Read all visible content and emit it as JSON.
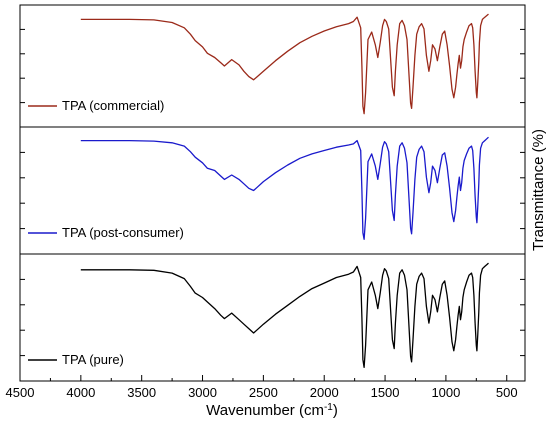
{
  "chart_data": {
    "type": "line",
    "xlabel": "Wavenumber (cm",
    "xlabel_superscript": "-1",
    "xlabel_suffix": ")",
    "ylabel": "Transmittance (%)",
    "x_ticks": [
      "4500",
      "4000",
      "3500",
      "3000",
      "2500",
      "2000",
      "1500",
      "1000",
      "500"
    ],
    "xlim": [
      4500,
      350
    ],
    "x_reversed": true,
    "y_ticks": "unlabeled",
    "grid": false,
    "panels": [
      {
        "name": "TPA (commercial)",
        "color": "#9b2a1a",
        "x": [
          4000,
          3800,
          3600,
          3400,
          3250,
          3150,
          3100,
          3060,
          3000,
          2960,
          2900,
          2850,
          2820,
          2760,
          2700,
          2660,
          2620,
          2580,
          2550,
          2500,
          2400,
          2300,
          2200,
          2100,
          2000,
          1900,
          1800,
          1760,
          1730,
          1700,
          1690,
          1682,
          1672,
          1660,
          1640,
          1610,
          1580,
          1560,
          1540,
          1520,
          1505,
          1490,
          1470,
          1440,
          1425,
          1415,
          1400,
          1380,
          1360,
          1340,
          1320,
          1300,
          1290,
          1282,
          1270,
          1255,
          1240,
          1220,
          1200,
          1180,
          1160,
          1140,
          1125,
          1110,
          1090,
          1070,
          1050,
          1030,
          1010,
          990,
          970,
          950,
          935,
          920,
          910,
          900,
          890,
          880,
          870,
          860,
          850,
          830,
          810,
          790,
          780,
          770,
          760,
          750,
          745,
          738,
          730,
          725,
          715,
          700,
          680,
          660,
          650
        ],
        "y": [
          0.94,
          0.94,
          0.94,
          0.935,
          0.91,
          0.86,
          0.8,
          0.74,
          0.68,
          0.62,
          0.58,
          0.53,
          0.5,
          0.56,
          0.51,
          0.45,
          0.4,
          0.37,
          0.4,
          0.45,
          0.55,
          0.64,
          0.72,
          0.78,
          0.83,
          0.87,
          0.9,
          0.92,
          0.96,
          0.86,
          0.5,
          0.12,
          0.05,
          0.25,
          0.75,
          0.82,
          0.7,
          0.58,
          0.72,
          0.88,
          0.94,
          0.92,
          0.85,
          0.3,
          0.22,
          0.45,
          0.7,
          0.9,
          0.93,
          0.88,
          0.75,
          0.35,
          0.15,
          0.1,
          0.3,
          0.6,
          0.8,
          0.87,
          0.9,
          0.85,
          0.6,
          0.45,
          0.55,
          0.7,
          0.66,
          0.55,
          0.68,
          0.8,
          0.83,
          0.7,
          0.5,
          0.28,
          0.2,
          0.3,
          0.42,
          0.52,
          0.6,
          0.48,
          0.55,
          0.68,
          0.75,
          0.82,
          0.88,
          0.9,
          0.86,
          0.7,
          0.45,
          0.25,
          0.2,
          0.35,
          0.55,
          0.72,
          0.88,
          0.94,
          0.96,
          0.98,
          0.99
        ]
      },
      {
        "name": "TPA (post-consumer)",
        "color": "#1a1acc",
        "x": [
          4000,
          3800,
          3600,
          3400,
          3250,
          3150,
          3100,
          3060,
          3000,
          2960,
          2900,
          2850,
          2820,
          2760,
          2700,
          2660,
          2620,
          2580,
          2550,
          2500,
          2400,
          2300,
          2200,
          2100,
          2000,
          1900,
          1800,
          1760,
          1730,
          1700,
          1690,
          1682,
          1672,
          1660,
          1640,
          1610,
          1580,
          1560,
          1540,
          1520,
          1505,
          1490,
          1470,
          1440,
          1425,
          1415,
          1400,
          1380,
          1360,
          1340,
          1320,
          1300,
          1290,
          1282,
          1270,
          1255,
          1240,
          1220,
          1200,
          1180,
          1160,
          1140,
          1125,
          1110,
          1090,
          1070,
          1050,
          1030,
          1010,
          990,
          970,
          950,
          935,
          920,
          910,
          900,
          890,
          880,
          870,
          860,
          850,
          830,
          810,
          790,
          780,
          770,
          760,
          750,
          745,
          738,
          730,
          725,
          715,
          700,
          680,
          660,
          650
        ],
        "y": [
          0.95,
          0.95,
          0.95,
          0.945,
          0.93,
          0.9,
          0.85,
          0.8,
          0.75,
          0.7,
          0.68,
          0.63,
          0.6,
          0.64,
          0.6,
          0.56,
          0.52,
          0.5,
          0.53,
          0.58,
          0.66,
          0.73,
          0.79,
          0.83,
          0.86,
          0.89,
          0.91,
          0.92,
          0.95,
          0.86,
          0.5,
          0.12,
          0.06,
          0.25,
          0.76,
          0.83,
          0.72,
          0.6,
          0.74,
          0.89,
          0.94,
          0.92,
          0.85,
          0.32,
          0.23,
          0.46,
          0.72,
          0.9,
          0.93,
          0.88,
          0.75,
          0.36,
          0.16,
          0.11,
          0.3,
          0.6,
          0.8,
          0.87,
          0.9,
          0.85,
          0.62,
          0.48,
          0.57,
          0.72,
          0.68,
          0.57,
          0.7,
          0.82,
          0.84,
          0.72,
          0.52,
          0.3,
          0.22,
          0.32,
          0.44,
          0.54,
          0.62,
          0.5,
          0.57,
          0.7,
          0.77,
          0.83,
          0.88,
          0.9,
          0.86,
          0.7,
          0.45,
          0.26,
          0.21,
          0.36,
          0.56,
          0.73,
          0.88,
          0.93,
          0.95,
          0.97,
          0.98
        ]
      },
      {
        "name": "TPA (pure)",
        "color": "#000000",
        "x": [
          4000,
          3800,
          3600,
          3400,
          3250,
          3150,
          3100,
          3060,
          3000,
          2960,
          2900,
          2850,
          2820,
          2760,
          2700,
          2660,
          2620,
          2580,
          2550,
          2500,
          2400,
          2300,
          2200,
          2100,
          2000,
          1900,
          1800,
          1760,
          1730,
          1700,
          1690,
          1682,
          1672,
          1660,
          1640,
          1610,
          1580,
          1560,
          1540,
          1520,
          1505,
          1490,
          1470,
          1440,
          1425,
          1415,
          1400,
          1380,
          1360,
          1340,
          1320,
          1300,
          1290,
          1282,
          1270,
          1255,
          1240,
          1220,
          1200,
          1180,
          1160,
          1140,
          1125,
          1110,
          1090,
          1070,
          1050,
          1030,
          1010,
          990,
          970,
          950,
          935,
          920,
          910,
          900,
          890,
          880,
          870,
          860,
          850,
          830,
          810,
          790,
          780,
          770,
          760,
          750,
          745,
          738,
          730,
          725,
          715,
          700,
          680,
          660,
          650
        ],
        "y": [
          0.93,
          0.93,
          0.93,
          0.925,
          0.9,
          0.85,
          0.78,
          0.72,
          0.68,
          0.64,
          0.58,
          0.52,
          0.49,
          0.54,
          0.48,
          0.44,
          0.4,
          0.36,
          0.39,
          0.44,
          0.53,
          0.61,
          0.69,
          0.76,
          0.81,
          0.86,
          0.89,
          0.91,
          0.96,
          0.86,
          0.5,
          0.12,
          0.05,
          0.25,
          0.75,
          0.82,
          0.7,
          0.58,
          0.72,
          0.88,
          0.94,
          0.92,
          0.85,
          0.3,
          0.22,
          0.45,
          0.7,
          0.9,
          0.93,
          0.88,
          0.75,
          0.35,
          0.15,
          0.1,
          0.3,
          0.6,
          0.8,
          0.87,
          0.9,
          0.85,
          0.6,
          0.45,
          0.55,
          0.7,
          0.66,
          0.55,
          0.68,
          0.8,
          0.83,
          0.7,
          0.5,
          0.28,
          0.2,
          0.3,
          0.42,
          0.52,
          0.6,
          0.48,
          0.55,
          0.68,
          0.75,
          0.82,
          0.88,
          0.9,
          0.86,
          0.7,
          0.45,
          0.25,
          0.2,
          0.35,
          0.55,
          0.72,
          0.88,
          0.94,
          0.96,
          0.98,
          0.99
        ]
      }
    ]
  }
}
